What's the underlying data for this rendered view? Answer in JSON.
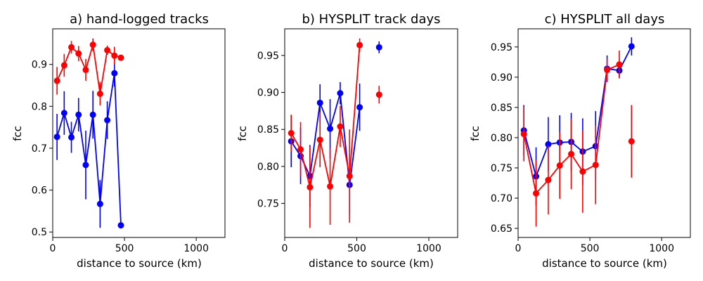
{
  "chart_data": [
    {
      "type": "line",
      "title": "a) hand-logged tracks",
      "xlabel": "distance to source (km)",
      "ylabel": "fcc",
      "xlim": [
        0,
        1200
      ],
      "ylim": [
        0.487,
        0.985
      ],
      "xticks": [
        0,
        500,
        1000
      ],
      "yticks": [
        0.5,
        0.6,
        0.7,
        0.8,
        0.9
      ],
      "ytick_labels": [
        "0.5",
        "0.6",
        "0.7",
        "0.8",
        "0.9"
      ],
      "series": [
        {
          "name": "blue",
          "color": "#0000ff",
          "x": [
            30,
            80,
            130,
            180,
            230,
            280,
            330,
            380,
            430,
            475
          ],
          "y": [
            0.727,
            0.784,
            0.726,
            0.78,
            0.66,
            0.78,
            0.567,
            0.767,
            0.879,
            0.516
          ],
          "err": [
            0.055,
            0.052,
            0.037,
            0.04,
            0.082,
            0.057,
            0.057,
            0.045,
            0.032,
            0.0
          ],
          "segments": [
            [
              0,
              9
            ]
          ]
        },
        {
          "name": "red",
          "color": "#ff0000",
          "x": [
            30,
            80,
            130,
            180,
            230,
            280,
            330,
            380,
            430,
            475
          ],
          "y": [
            0.861,
            0.898,
            0.941,
            0.926,
            0.887,
            0.947,
            0.83,
            0.934,
            0.921,
            0.916
          ],
          "err": [
            0.033,
            0.027,
            0.015,
            0.018,
            0.026,
            0.015,
            0.028,
            0.011,
            0.021,
            0.0
          ],
          "segments": [
            [
              0,
              9
            ]
          ]
        }
      ]
    },
    {
      "type": "line",
      "title": "b) HYSPLIT track days",
      "xlabel": "distance to source (km)",
      "ylabel": "fcc",
      "xlim": [
        0,
        1200
      ],
      "ylim": [
        0.704,
        0.986
      ],
      "xticks": [
        0,
        500,
        1000
      ],
      "yticks": [
        0.75,
        0.8,
        0.85,
        0.9,
        0.95
      ],
      "ytick_labels": [
        "0.75",
        "0.80",
        "0.85",
        "0.90",
        "0.95"
      ],
      "series": [
        {
          "name": "blue",
          "color": "#0000ff",
          "x": [
            45,
            110,
            175,
            245,
            315,
            385,
            450,
            520,
            655
          ],
          "y": [
            0.834,
            0.814,
            0.787,
            0.886,
            0.851,
            0.899,
            0.775,
            0.88,
            0.961
          ],
          "err": [
            0.035,
            0.038,
            0.042,
            0.025,
            0.04,
            0.015,
            0.041,
            0.032,
            0.008
          ],
          "segments": [
            [
              0,
              7
            ]
          ]
        },
        {
          "name": "red",
          "color": "#ff0000",
          "x": [
            45,
            110,
            175,
            245,
            315,
            385,
            450,
            520,
            655
          ],
          "y": [
            0.845,
            0.823,
            0.772,
            0.836,
            0.773,
            0.854,
            0.787,
            0.964,
            0.897
          ],
          "err": [
            0.025,
            0.037,
            0.055,
            0.037,
            0.052,
            0.028,
            0.063,
            0.009,
            0.012
          ],
          "segments": [
            [
              0,
              7
            ]
          ]
        }
      ]
    },
    {
      "type": "line",
      "title": "c) HYSPLIT all days",
      "xlabel": "distance to source (km)",
      "ylabel": "fcc",
      "xlim": [
        0,
        1200
      ],
      "ylim": [
        0.635,
        0.98
      ],
      "xticks": [
        0,
        500,
        1000
      ],
      "yticks": [
        0.65,
        0.7,
        0.75,
        0.8,
        0.85,
        0.9,
        0.95
      ],
      "ytick_labels": [
        "0.65",
        "0.70",
        "0.75",
        "0.80",
        "0.85",
        "0.90",
        "0.95"
      ],
      "series": [
        {
          "name": "blue",
          "color": "#0000ff",
          "x": [
            40,
            125,
            210,
            290,
            370,
            450,
            540,
            620,
            705,
            790
          ],
          "y": [
            0.812,
            0.736,
            0.789,
            0.792,
            0.793,
            0.777,
            0.786,
            0.914,
            0.911,
            0.951
          ],
          "err": [
            0.042,
            0.048,
            0.045,
            0.045,
            0.048,
            0.055,
            0.058,
            0.022,
            0.012,
            0.015
          ],
          "segments": [
            [
              0,
              9
            ]
          ]
        },
        {
          "name": "red",
          "color": "#ff0000",
          "x": [
            40,
            125,
            210,
            290,
            370,
            450,
            540,
            620,
            705,
            790
          ],
          "y": [
            0.806,
            0.708,
            0.73,
            0.754,
            0.773,
            0.744,
            0.755,
            0.912,
            0.921,
            0.794
          ],
          "err": [
            0.045,
            0.055,
            0.057,
            0.055,
            0.058,
            0.068,
            0.065,
            0.018,
            0.023,
            0.06
          ],
          "segments": [
            [
              0,
              8
            ]
          ]
        }
      ]
    }
  ]
}
